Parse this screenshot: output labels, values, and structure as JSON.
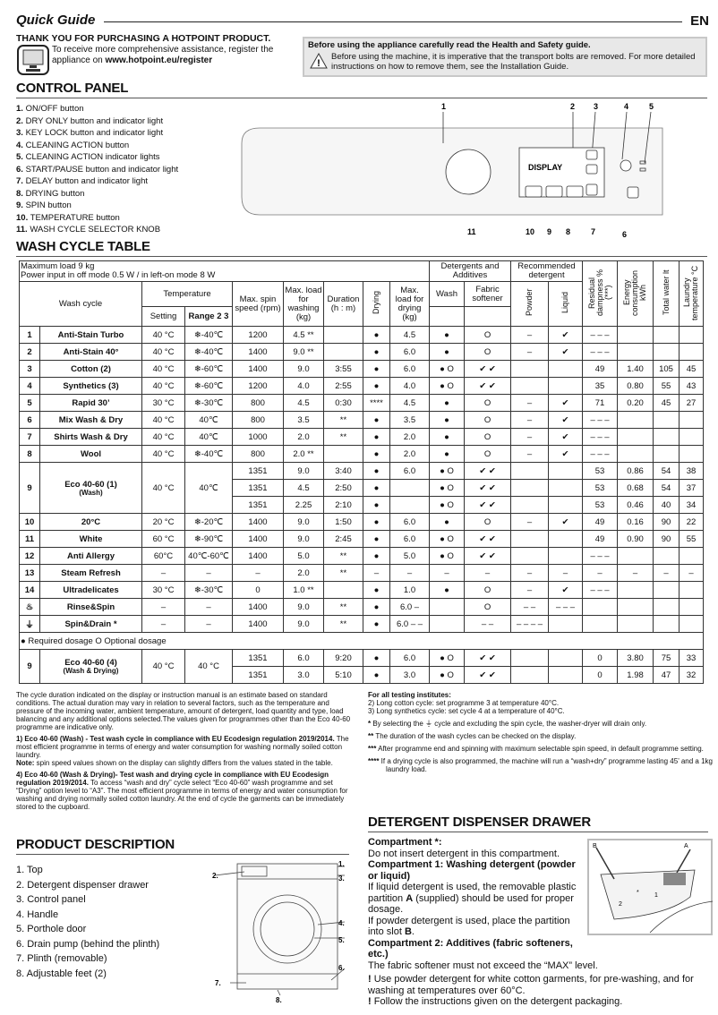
{
  "header": {
    "title": "Quick Guide",
    "lang": "EN",
    "thanks": "THANK YOU FOR PURCHASING A HOTPOINT PRODUCT.",
    "register_text": "To receive more comprehensive assistance, register the appliance on ",
    "register_url": "www.hotpoint.eu/register"
  },
  "safety": {
    "title": "Before using the appliance carefully read the Health and Safety guide.",
    "body": "Before using the machine, it is imperative that the transport bolts are removed. For more detailed instructions on how to remove them, see the Installation Guide."
  },
  "control_panel": {
    "title": "CONTROL PANEL",
    "items": [
      {
        "n": "1.",
        "label": "ON/OFF button"
      },
      {
        "n": "2.",
        "label": "DRY ONLY button and indicator light"
      },
      {
        "n": "3.",
        "label": "KEY LOCK button and indicator light"
      },
      {
        "n": "4.",
        "label": "CLEANING ACTION button"
      },
      {
        "n": "5.",
        "label": "CLEANING ACTION indicator lights"
      },
      {
        "n": "6.",
        "label": "START/PAUSE button and indicator light"
      },
      {
        "n": "7.",
        "label": "DELAY button and indicator light"
      },
      {
        "n": "8.",
        "label": "DRYING button"
      },
      {
        "n": "9.",
        "label": "SPIN button"
      },
      {
        "n": "10.",
        "label": "TEMPERATURE button"
      },
      {
        "n": "11.",
        "label": "WASH CYCLE SELECTOR KNOB"
      }
    ],
    "display_label": "DISPLAY",
    "callouts_top": [
      "1",
      "2",
      "3",
      "4",
      "5"
    ],
    "callouts_bottom": [
      "11",
      "10",
      "9",
      "8",
      "7",
      "6"
    ]
  },
  "wash_table": {
    "title": "WASH CYCLE TABLE",
    "max_load": "Maximum load 9 kg",
    "power": "Power input in off  mode 0.5 W / in left-on mode 8 W",
    "headers": {
      "wash_cycle": "Wash cycle",
      "temperature": "Temperature",
      "setting": "Setting",
      "range": "Range 2 3",
      "spin": "Max. spin speed (rpm)",
      "load_wash": "Max. load for washing (kg)",
      "duration": "Duration (h : m)",
      "drying": "Drying",
      "load_dry": "Max. load for drying (kg)",
      "detergents": "Detergents and Additives",
      "wash": "Wash",
      "softener": "Fabric softener",
      "recommended": "Recommended detergent",
      "powder": "Powder",
      "liquid": "Liquid",
      "residual": "Residual dampness % (***)",
      "energy": "Energy consumption kWh",
      "water": "Total water lt",
      "ltemp": "Laundry temperature °C"
    },
    "cycles": [
      {
        "num": "1",
        "name": "Anti-Stain Turbo",
        "temp": "40 °C",
        "range": "❄-40℃",
        "rows": [
          [
            "1200",
            "4.5 **",
            "",
            "●",
            "4.5",
            "●",
            "O",
            "–",
            "✔",
            "– – –",
            "",
            "",
            ""
          ]
        ]
      },
      {
        "num": "2",
        "name": "Anti-Stain 40°",
        "temp": "40 °C",
        "range": "❄-40℃",
        "rows": [
          [
            "1400",
            "9.0 **",
            "",
            "●",
            "6.0",
            "●",
            "O",
            "–",
            "✔",
            "– – –",
            "",
            "",
            ""
          ]
        ]
      },
      {
        "num": "3",
        "name": "Cotton (2)",
        "temp": "40 °C",
        "range": "❄-60℃",
        "rows": [
          [
            "1400",
            "9.0",
            "3:55",
            "●",
            "6.0",
            "● O",
            "✔ ✔",
            "",
            "",
            "49",
            "1.40",
            "105",
            "45"
          ]
        ]
      },
      {
        "num": "4",
        "name": "Synthetics (3)",
        "temp": "40 °C",
        "range": "❄-60℃",
        "rows": [
          [
            "1200",
            "4.0",
            "2:55",
            "●",
            "4.0",
            "● O",
            "✔ ✔",
            "",
            "",
            "35",
            "0.80",
            "55",
            "43"
          ]
        ]
      },
      {
        "num": "5",
        "name": "Rapid 30’",
        "temp": "30 °C",
        "range": "❄-30℃",
        "rows": [
          [
            "800",
            "4.5",
            "0:30",
            "****",
            "4.5",
            "●",
            "O",
            "–",
            "✔",
            "71",
            "0.20",
            "45",
            "27"
          ]
        ]
      },
      {
        "num": "6",
        "name": "Mix Wash & Dry",
        "temp": "40 °C",
        "range": "40℃",
        "rows": [
          [
            "800",
            "3.5",
            "**",
            "●",
            "3.5",
            "●",
            "O",
            "–",
            "✔",
            "– – –",
            "",
            "",
            ""
          ]
        ]
      },
      {
        "num": "7",
        "name": "Shirts Wash & Dry",
        "temp": "40 °C",
        "range": "40℃",
        "rows": [
          [
            "1000",
            "2.0",
            "**",
            "●",
            "2.0",
            "●",
            "O",
            "–",
            "✔",
            "– – –",
            "",
            "",
            ""
          ]
        ]
      },
      {
        "num": "8",
        "name": "Wool",
        "temp": "40 °C",
        "range": "❄-40℃",
        "rows": [
          [
            "800",
            "2.0 **",
            "",
            "●",
            "2.0",
            "●",
            "O",
            "–",
            "✔",
            "– – –",
            "",
            "",
            ""
          ]
        ]
      },
      {
        "num": "9",
        "name": "Eco 40-60 (1)",
        "sub": "(Wash)",
        "temp": "40 °C",
        "range": "40℃",
        "rows": [
          [
            "1351",
            "9.0",
            "3:40",
            "●",
            "6.0",
            "● O",
            "✔ ✔",
            "",
            "",
            "53",
            "0.86",
            "54",
            "38"
          ],
          [
            "1351",
            "4.5",
            "2:50",
            "●",
            "",
            "● O",
            "✔ ✔",
            "",
            "",
            "53",
            "0.68",
            "54",
            "37"
          ],
          [
            "1351",
            "2.25",
            "2:10",
            "●",
            "",
            "● O",
            "✔ ✔",
            "",
            "",
            "53",
            "0.46",
            "40",
            "34"
          ]
        ]
      },
      {
        "num": "10",
        "name": "20°C",
        "temp": "20 °C",
        "range": "❄-20℃",
        "rows": [
          [
            "1400",
            "9.0",
            "1:50",
            "●",
            "6.0",
            "●",
            "O",
            "–",
            "✔",
            "49",
            "0.16",
            "90",
            "22"
          ]
        ]
      },
      {
        "num": "11",
        "name": "White",
        "temp": "60 °C",
        "range": "❄-90℃",
        "rows": [
          [
            "1400",
            "9.0",
            "2:45",
            "●",
            "6.0",
            "● O",
            "✔ ✔",
            "",
            "",
            "49",
            "0.90",
            "90",
            "55"
          ]
        ]
      },
      {
        "num": "12",
        "name": "Anti Allergy",
        "temp": "60°C",
        "range": "40℃-60℃",
        "rows": [
          [
            "1400",
            "5.0",
            "**",
            "●",
            "5.0",
            "● O",
            "✔ ✔",
            "",
            "",
            "– – –",
            "",
            "",
            ""
          ]
        ]
      },
      {
        "num": "13",
        "name": "Steam Refresh",
        "temp": "–",
        "range": "–",
        "rows": [
          [
            "–",
            "2.0",
            "**",
            "–",
            "–",
            "–",
            "–",
            "–",
            "–",
            "–",
            "–",
            "–",
            "–"
          ]
        ]
      },
      {
        "num": "14",
        "name": "Ultradelicates",
        "temp": "30 °C",
        "range": "❄-30℃",
        "rows": [
          [
            "0",
            "1.0 **",
            "",
            "●",
            "1.0",
            "●",
            "O",
            "–",
            "✔",
            "– – –",
            "",
            "",
            ""
          ]
        ]
      },
      {
        "num": "",
        "icon": "rinse-icon",
        "name": "Rinse&Spin",
        "temp": "–",
        "range": "–",
        "rows": [
          [
            "1400",
            "9.0",
            "**",
            "●",
            "6.0 –",
            "",
            "O",
            "– –",
            "– – –",
            "",
            "",
            "",
            ""
          ]
        ]
      },
      {
        "num": "",
        "icon": "drain-icon",
        "name": "Spin&Drain *",
        "temp": "–",
        "range": "–",
        "rows": [
          [
            "1400",
            "9.0",
            "**",
            "●",
            "6.0 – –",
            "",
            "– –",
            "– – – –",
            "",
            "",
            "",
            "",
            ""
          ]
        ]
      }
    ],
    "legend": {
      "required": "Required dosage",
      "optional": "Optional dosage"
    },
    "eco4": {
      "num": "9",
      "name": "Eco 40-60 (4)",
      "sub": "(Wash & Drying)",
      "temp": "40 °C",
      "range": "40 °C",
      "rows": [
        [
          "1351",
          "6.0",
          "9:20",
          "●",
          "6.0",
          "● O",
          "✔ ✔",
          "",
          "",
          "0",
          "3.80",
          "75",
          "33"
        ],
        [
          "1351",
          "3.0",
          "5:10",
          "●",
          "3.0",
          "● O",
          "✔ ✔",
          "",
          "",
          "0",
          "1.98",
          "47",
          "32"
        ]
      ]
    }
  },
  "notes_left": {
    "intro": "The cycle duration indicated on the display or instruction manual is an estimate based on standard conditions. The actual duration may vary in relation to several factors, such as the temperature and pressure of the incoming water, ambient temperature, amount of detergent, load quantity and type, load balancing and any additional options selected.The values given for programmes other than the Eco 40-60 programme are indicative only.",
    "n1_bold": "1) Eco 40-60 (Wash) - Test wash cycle in compliance with EU Ecodesign regulation 2019/2014.",
    "n1": " The most efficient programme in terms of energy and water consumption for washing normally soiled cotton laundry.",
    "note_bold": "Note:",
    "note": " spin speed values shown on the display can slightly differs from the values stated in the table.",
    "n4_bold": "4) Eco 40-60 (Wash & Drying)-  Test wash and drying cycle in compliance with EU Ecodesign regulation 2019/2014.",
    "n4": " To access “wash and dry” cycle select  “Eco 40-60” wash programme and set “Drying” option level to  “A3”.  The most efficient programme in terms of energy and water consumption for washing and drying normally soiled cotton laundry. At the end of cycle the garments can be immediately stored to the cupboard."
  },
  "notes_right": {
    "title": "For all testing institutes:",
    "n2": "2)  Long cotton cycle: set programme 3 at temperature 40°C.",
    "n3": "3)  Long synthetics cycle: set cycle 4 at a temperature of 40°C.",
    "s1_mark": "*",
    "s1a": " By selecting the ",
    "s1b": " cycle and excluding the spin cycle, the washer-dryer will drain only.",
    "s2_mark": "**",
    "s2": " The duration of the wash cycles can be checked on the display.",
    "s3_mark": "***",
    "s3": " After programme end and spinning with maximum selectable spin speed, in default programme setting.",
    "s4_mark": "****",
    "s4": " If a drying cycle is also programmed, the machine will run a “wash+dry” programme lasting 45’ and a 1kg laundry load."
  },
  "product": {
    "title": "PRODUCT DESCRIPTION",
    "items": [
      "1. Top",
      "2. Detergent dispenser drawer",
      "3. Control panel",
      "4. Handle",
      "5. Porthole door",
      "6. Drain pump (behind the plinth)",
      "7. Plinth (removable)",
      "8. Adjustable feet (2)"
    ],
    "callouts": [
      "1.",
      "2.",
      "3.",
      "4.",
      "5.",
      "6.",
      "7.",
      "8."
    ]
  },
  "drawer": {
    "title": "DETERGENT DISPENSER DRAWER",
    "c0_title": "Compartment *:",
    "c0": "Do not insert detergent in this compartment.",
    "c1_title": "Compartment 1: Washing detergent (powder or liquid)",
    "c1a": "If liquid detergent is used, the removable plastic partition ",
    "c1a_bold": "A",
    "c1a_end": " (supplied) should be used for proper dosage.",
    "c1b": "If powder detergent is used, place the partition into slot ",
    "c1b_bold": "B",
    "c1b_end": ".",
    "c2_title": "Compartment 2: Additives (fabric softeners, etc.)",
    "c2": "The fabric softener must not exceed the “MAX” level.",
    "w1": "Use powder detergent for white cotton garments, for pre-washing, and for washing at temperatures over 60°C.",
    "w2": "Follow the instructions given on the detergent packaging.",
    "fig_labels": [
      "B",
      "A",
      "2",
      "1",
      "*"
    ]
  }
}
